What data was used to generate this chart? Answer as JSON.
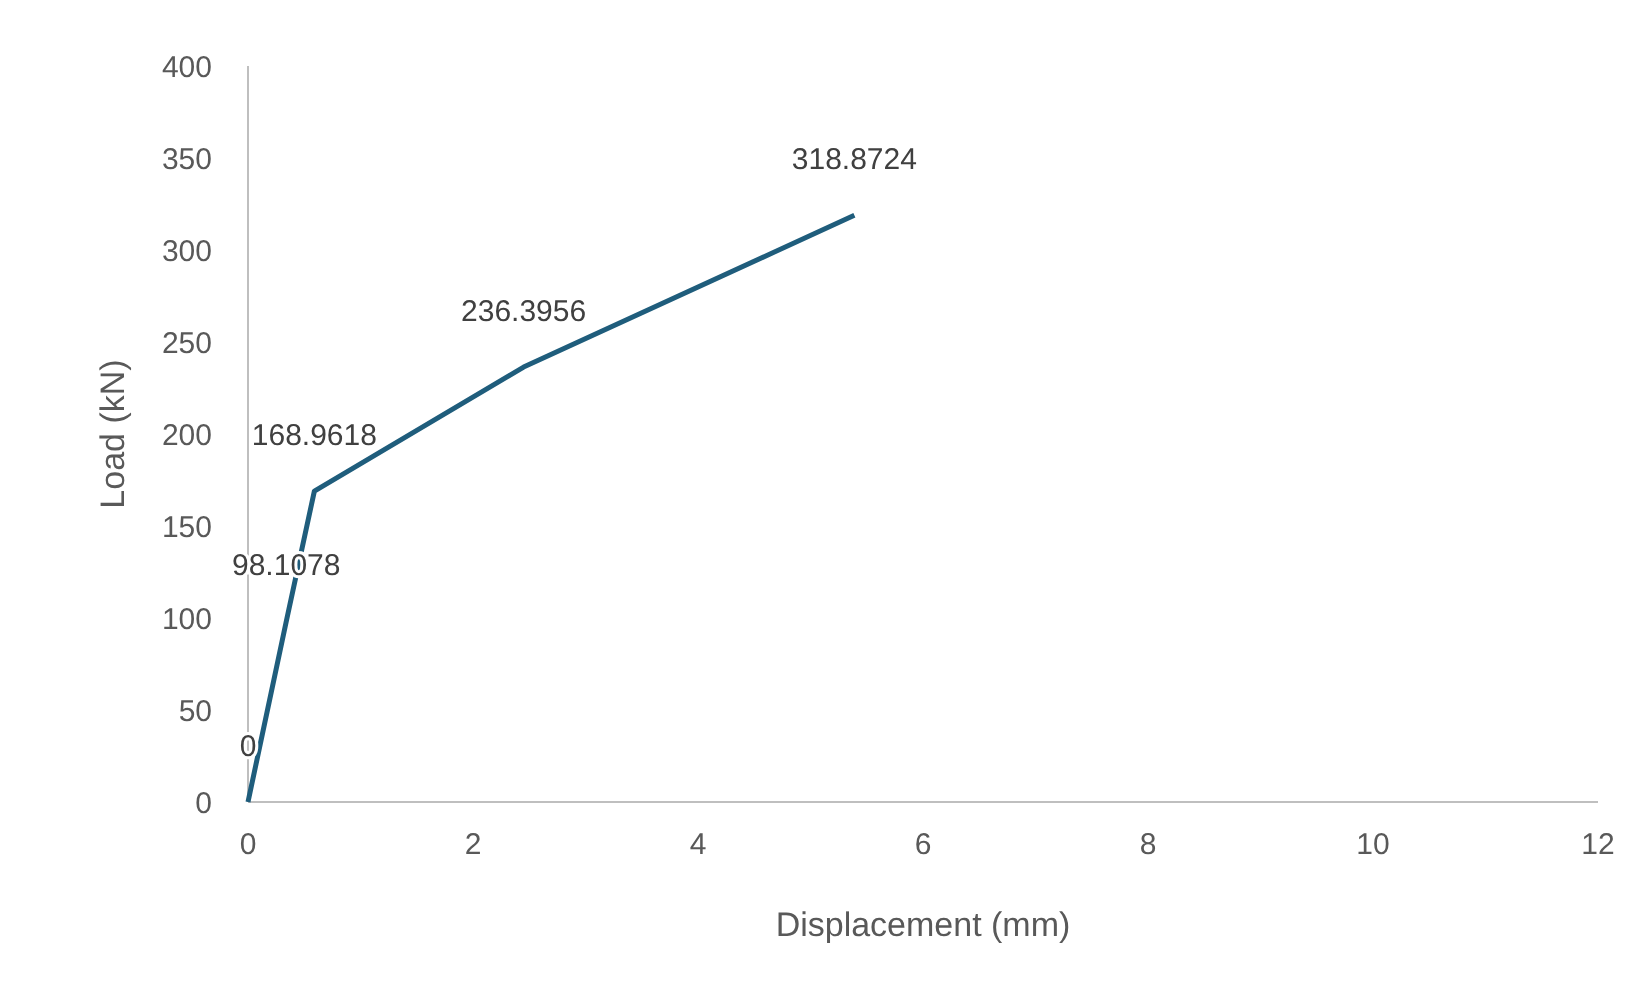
{
  "chart_data": {
    "type": "line",
    "xlabel": "Displacement (mm)",
    "ylabel": "Load (kN)",
    "x": [
      0,
      0.34,
      0.59,
      2.45,
      5.39
    ],
    "series": [
      {
        "color": "#1f5d7c",
        "values": [
          0,
          98.1078,
          168.9618,
          236.3956,
          318.8724
        ]
      }
    ],
    "xlim": [
      0,
      12
    ],
    "xticks": [
      0,
      2,
      4,
      6,
      8,
      10,
      12
    ],
    "ylim": [
      0,
      400
    ],
    "yticks": [
      0,
      50,
      100,
      150,
      200,
      250,
      300,
      350,
      400
    ],
    "grid": false,
    "marker": "none",
    "line_style": "solid",
    "data_labels": true
  }
}
